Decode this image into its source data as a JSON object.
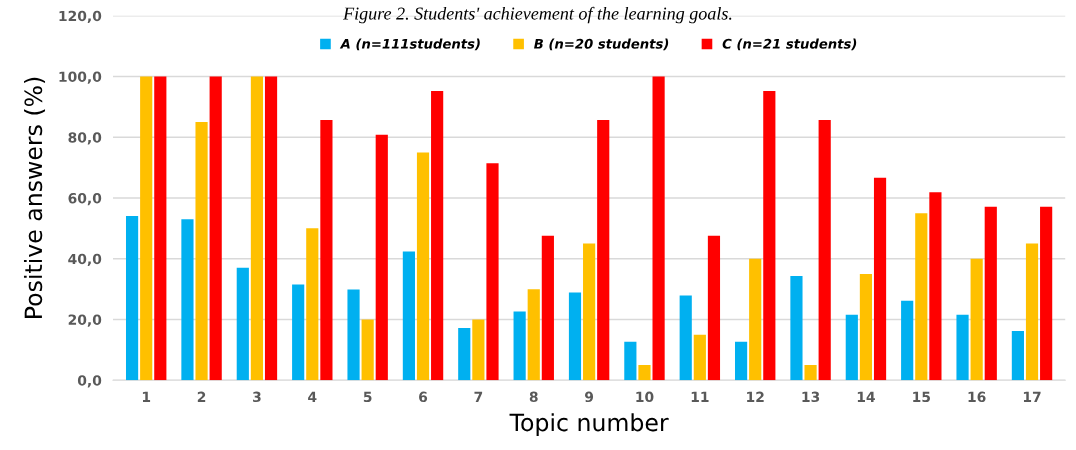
{
  "chart_data": {
    "type": "bar",
    "title": "Figure 2. Students' achievement of the learning goals.",
    "xlabel": "Topic number",
    "ylabel": "Positive answers (%)",
    "categories": [
      "1",
      "2",
      "3",
      "4",
      "5",
      "6",
      "7",
      "8",
      "9",
      "10",
      "11",
      "12",
      "13",
      "14",
      "15",
      "16",
      "17"
    ],
    "series": [
      {
        "name": "A (n=111students)",
        "color": "#00b0f0",
        "values": [
          54.1,
          53.0,
          37.0,
          31.5,
          29.9,
          42.4,
          17.2,
          22.6,
          28.9,
          12.7,
          27.9,
          12.7,
          34.3,
          21.6,
          26.2,
          21.6,
          16.2
        ]
      },
      {
        "name": "B (n=20 students)",
        "color": "#ffc000",
        "values": [
          100,
          85,
          100,
          50,
          20,
          75,
          20,
          30,
          45,
          5,
          15,
          40,
          5,
          35,
          55,
          40,
          45
        ]
      },
      {
        "name": "C (n=21 students)",
        "color": "#ff0000",
        "values": [
          100,
          100,
          100,
          85.7,
          80.8,
          95.2,
          71.4,
          47.6,
          85.7,
          100,
          47.6,
          95.2,
          85.7,
          66.7,
          61.9,
          57.1,
          57.1
        ]
      }
    ],
    "ylim": [
      0,
      120
    ],
    "yticks": [
      {
        "value": 0,
        "label": "0,0"
      },
      {
        "value": 20,
        "label": "20,0"
      },
      {
        "value": 40,
        "label": "40,0"
      },
      {
        "value": 60,
        "label": "60,0"
      },
      {
        "value": 80,
        "label": "80,0"
      },
      {
        "value": 100,
        "label": "100,0"
      },
      {
        "value": 120,
        "label": "120,0"
      }
    ],
    "grid": "y",
    "legend": "top"
  }
}
